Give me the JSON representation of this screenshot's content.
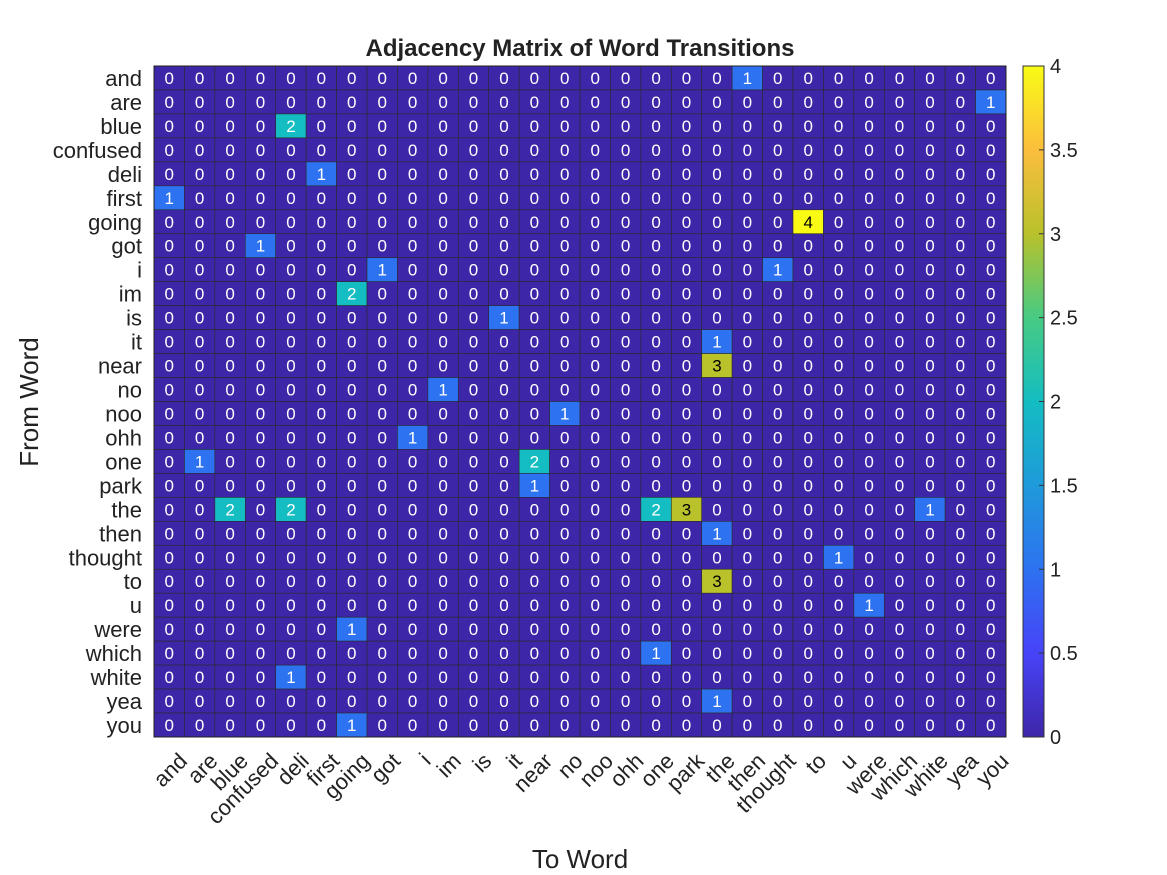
{
  "chart_data": {
    "type": "heatmap",
    "title": "Adjacency Matrix of Word Transitions",
    "xlabel": "To Word",
    "ylabel": "From Word",
    "labels": [
      "and",
      "are",
      "blue",
      "confused",
      "deli",
      "first",
      "going",
      "got",
      "i",
      "im",
      "is",
      "it",
      "near",
      "no",
      "noo",
      "ohh",
      "one",
      "park",
      "the",
      "then",
      "thought",
      "to",
      "u",
      "were",
      "which",
      "white",
      "yea",
      "you"
    ],
    "cells": [
      {
        "from": "and",
        "to": "then",
        "value": 1
      },
      {
        "from": "are",
        "to": "you",
        "value": 1
      },
      {
        "from": "blue",
        "to": "deli",
        "value": 2
      },
      {
        "from": "deli",
        "to": "first",
        "value": 1
      },
      {
        "from": "first",
        "to": "and",
        "value": 1
      },
      {
        "from": "going",
        "to": "to",
        "value": 4
      },
      {
        "from": "got",
        "to": "confused",
        "value": 1
      },
      {
        "from": "i",
        "to": "got",
        "value": 1
      },
      {
        "from": "i",
        "to": "thought",
        "value": 1
      },
      {
        "from": "im",
        "to": "going",
        "value": 2
      },
      {
        "from": "is",
        "to": "it",
        "value": 1
      },
      {
        "from": "it",
        "to": "the",
        "value": 1
      },
      {
        "from": "near",
        "to": "the",
        "value": 3
      },
      {
        "from": "no",
        "to": "im",
        "value": 1
      },
      {
        "from": "noo",
        "to": "no",
        "value": 1
      },
      {
        "from": "ohh",
        "to": "i",
        "value": 1
      },
      {
        "from": "one",
        "to": "are",
        "value": 1
      },
      {
        "from": "one",
        "to": "near",
        "value": 2
      },
      {
        "from": "park",
        "to": "near",
        "value": 1
      },
      {
        "from": "the",
        "to": "blue",
        "value": 2
      },
      {
        "from": "the",
        "to": "deli",
        "value": 2
      },
      {
        "from": "the",
        "to": "one",
        "value": 2
      },
      {
        "from": "the",
        "to": "park",
        "value": 3
      },
      {
        "from": "the",
        "to": "white",
        "value": 1
      },
      {
        "from": "then",
        "to": "the",
        "value": 1
      },
      {
        "from": "thought",
        "to": "u",
        "value": 1
      },
      {
        "from": "to",
        "to": "the",
        "value": 3
      },
      {
        "from": "u",
        "to": "were",
        "value": 1
      },
      {
        "from": "were",
        "to": "going",
        "value": 1
      },
      {
        "from": "which",
        "to": "one",
        "value": 1
      },
      {
        "from": "white",
        "to": "deli",
        "value": 1
      },
      {
        "from": "yea",
        "to": "the",
        "value": 1
      },
      {
        "from": "you",
        "to": "going",
        "value": 1
      }
    ],
    "colorbar": {
      "range": [
        0,
        4
      ],
      "ticks": [
        "0",
        "0.5",
        "1",
        "1.5",
        "2",
        "2.5",
        "3",
        "3.5",
        "4"
      ],
      "colormap": "parula"
    }
  }
}
